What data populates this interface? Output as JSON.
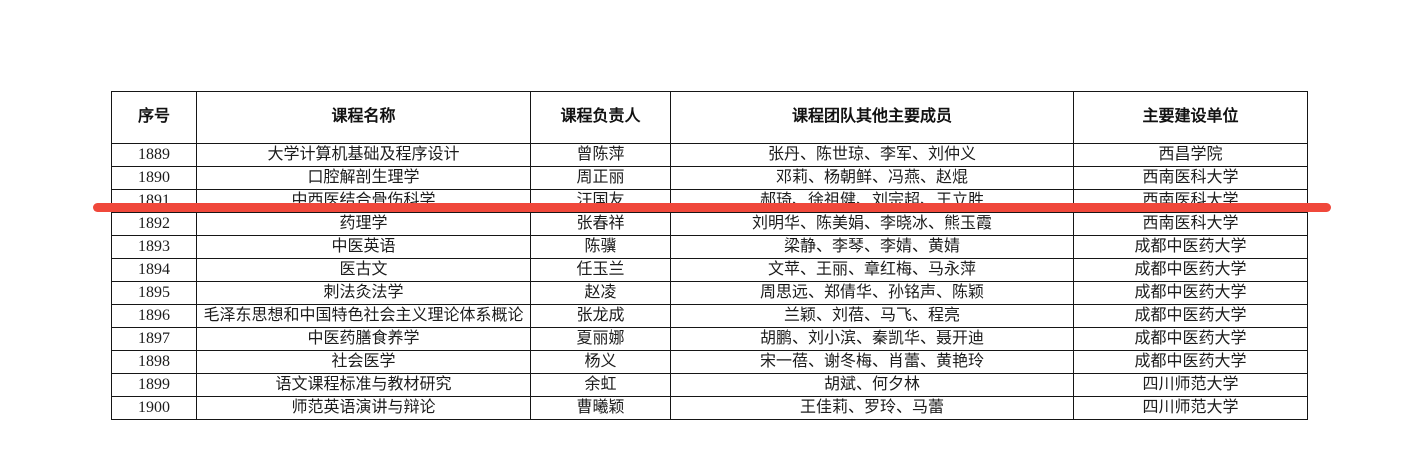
{
  "table": {
    "headers": [
      "序号",
      "课程名称",
      "课程负责人",
      "课程团队其他主要成员",
      "主要建设单位"
    ],
    "rows": [
      [
        "1889",
        "大学计算机基础及程序设计",
        "曾陈萍",
        "张丹、陈世琼、李军、刘仲义",
        "西昌学院"
      ],
      [
        "1890",
        "口腔解剖生理学",
        "周正丽",
        "邓莉、杨朝鲜、冯燕、赵焜",
        "西南医科大学"
      ],
      [
        "1891",
        "中西医结合骨伤科学",
        "汪国友",
        "郝琦、徐祖健、刘宗超、王立胜",
        "西南医科大学"
      ],
      [
        "1892",
        "药理学",
        "张春祥",
        "刘明华、陈美娟、李晓冰、熊玉霞",
        "西南医科大学"
      ],
      [
        "1893",
        "中医英语",
        "陈骥",
        "梁静、李琴、李婧、黄婧",
        "成都中医药大学"
      ],
      [
        "1894",
        "医古文",
        "任玉兰",
        "文苹、王丽、章红梅、马永萍",
        "成都中医药大学"
      ],
      [
        "1895",
        "刺法灸法学",
        "赵凌",
        "周思远、郑倩华、孙铭声、陈颖",
        "成都中医药大学"
      ],
      [
        "1896",
        "毛泽东思想和中国特色社会主义理论体系概论",
        "张龙成",
        "兰颖、刘蓓、马飞、程亮",
        "成都中医药大学"
      ],
      [
        "1897",
        "中医药膳食养学",
        "夏丽娜",
        "胡鹏、刘小滨、秦凯华、聂开迪",
        "成都中医药大学"
      ],
      [
        "1898",
        "社会医学",
        "杨义",
        "宋一蓓、谢冬梅、肖蕾、黄艳玲",
        "成都中医药大学"
      ],
      [
        "1899",
        "语文课程标准与教材研究",
        "余虹",
        "胡斌、何夕林",
        "四川师范大学"
      ],
      [
        "1900",
        "师范英语演讲与辩论",
        "曹曦颖",
        "王佳莉、罗玲、马蕾",
        "四川师范大学"
      ]
    ]
  },
  "annotation": {
    "type": "red-highlight-underline",
    "highlighted_row_seq": "1891",
    "color": "#f0483b"
  }
}
